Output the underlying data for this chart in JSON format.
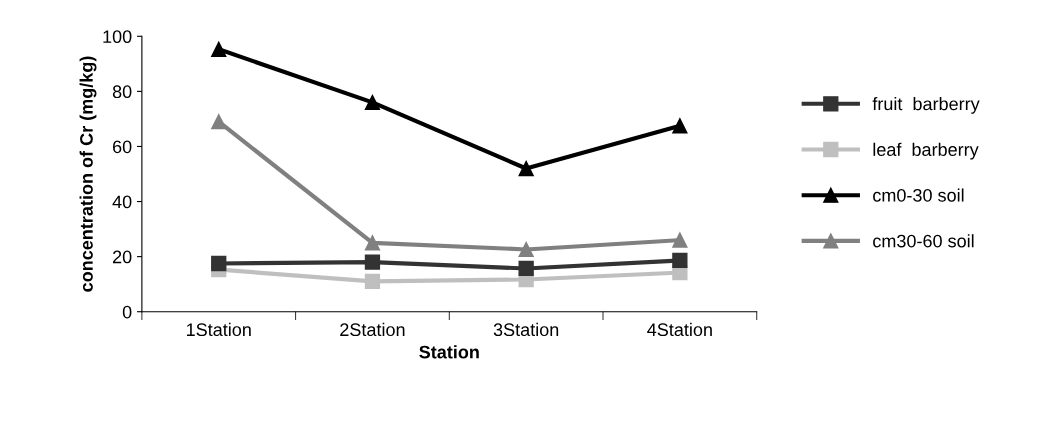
{
  "chart_data": {
    "type": "line",
    "xlabel": "Station",
    "ylabel": "concentration of Cr (mg/kg)",
    "categories": [
      "1Station",
      "2Station",
      "3Station",
      "4Station"
    ],
    "series": [
      {
        "name": "fruit  barberry",
        "color": "#333333",
        "marker": "square",
        "values": [
          17.5,
          18,
          15.7,
          18.6
        ]
      },
      {
        "name": "leaf  barberry",
        "color": "#bfbfbf",
        "marker": "square",
        "values": [
          15.3,
          11,
          11.7,
          14.2
        ]
      },
      {
        "name": "cm0-30 soil",
        "color": "#000000",
        "marker": "triangle",
        "values": [
          95.3,
          76,
          52,
          67.5
        ]
      },
      {
        "name": "cm30-60 soil",
        "color": "#808080",
        "marker": "triangle",
        "values": [
          69,
          25,
          22.6,
          26
        ]
      }
    ],
    "ylim": [
      0,
      100
    ],
    "yticks": [
      0,
      20,
      40,
      60,
      80,
      100
    ],
    "grid": false,
    "legend": "right",
    "line_style": "solid"
  }
}
